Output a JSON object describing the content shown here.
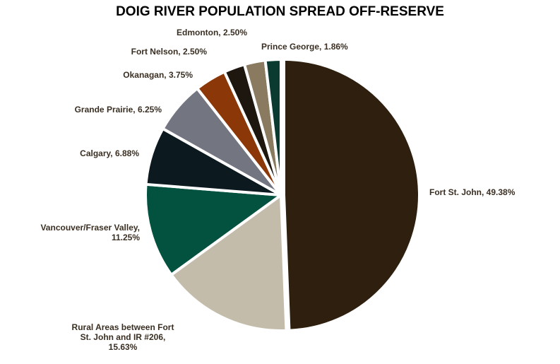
{
  "chart_data": {
    "type": "pie",
    "title": "DOIG RIVER POPULATION SPREAD OFF-RESERVE",
    "categories": [
      "Fort St. John, 49.38%",
      "Rural Areas between Fort St. John and IR #206, 15.63%",
      "Vancouver/Fraser Valley, 11.25%",
      "Calgary, 6.88%",
      "Grande Prairie, 6.25%",
      "Okanagan, 3.75%",
      "Fort Nelson, 2.50%",
      "Edmonton, 2.50%",
      "Prince George, 1.86%"
    ],
    "values": [
      49.38,
      15.63,
      11.25,
      6.88,
      6.25,
      3.75,
      2.5,
      2.5,
      1.86
    ],
    "colors": [
      "#2e1f0f",
      "#c4bcab",
      "#03513f",
      "#0c1a1f",
      "#737680",
      "#8b3708",
      "#1e1710",
      "#8a7b60",
      "#0b3b30"
    ]
  }
}
